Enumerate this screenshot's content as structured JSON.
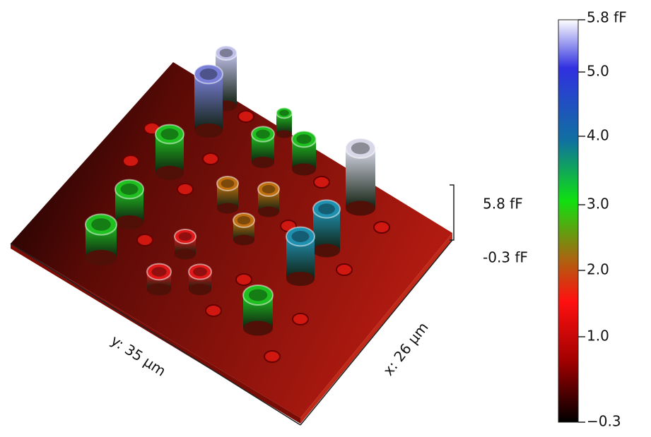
{
  "axes": {
    "y_label": "y: 35 µm",
    "x_label": "x: 26 µm",
    "z_max": "5.8 fF",
    "z_min": "-0.3 fF"
  },
  "colorbar": {
    "ticks": [
      "5.8 fF",
      "5.0",
      "4.0",
      "3.0",
      "2.0",
      "1.0",
      "−0.3"
    ]
  }
}
